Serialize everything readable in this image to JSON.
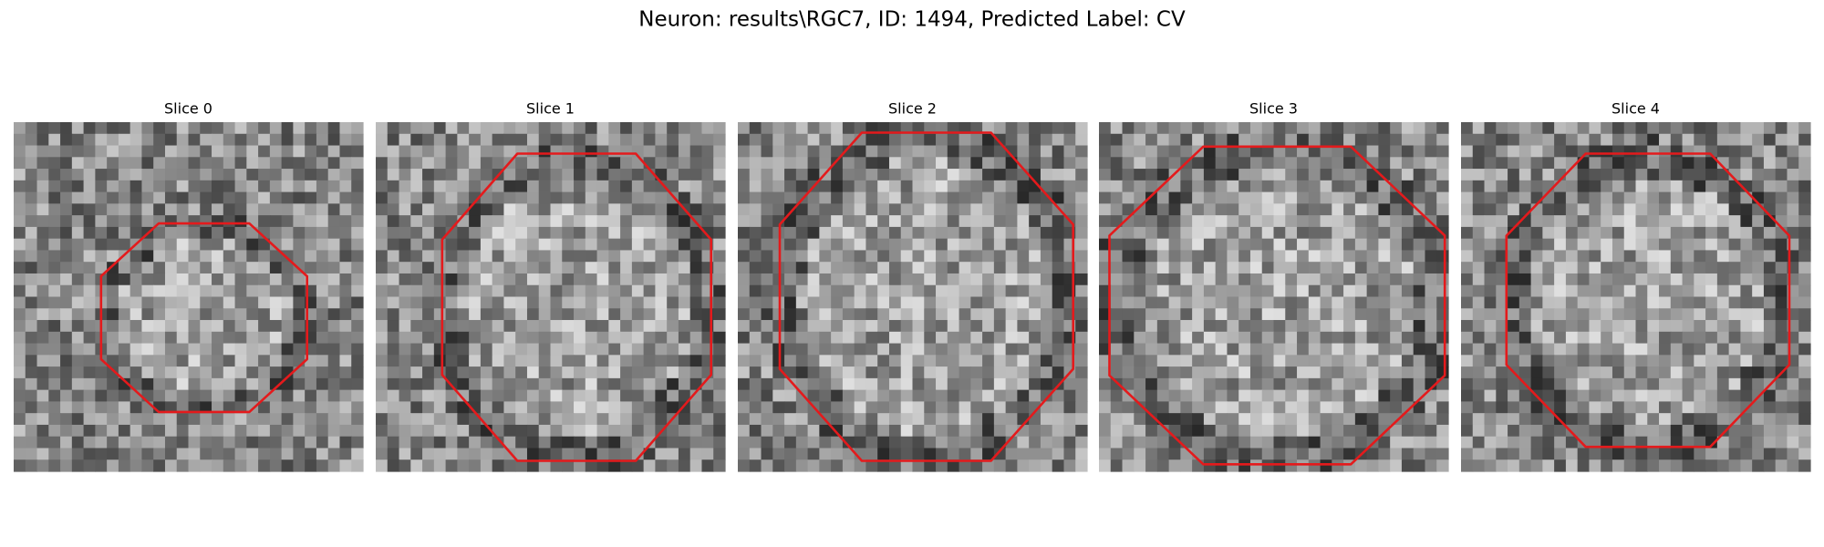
{
  "title": "Neuron: results\\RGC7, ID: 1494, Predicted Label: CV",
  "panels": [
    {
      "label": "Slice 0"
    },
    {
      "label": "Slice 1"
    },
    {
      "label": "Slice 2"
    },
    {
      "label": "Slice 3"
    },
    {
      "label": "Slice 4"
    }
  ]
}
